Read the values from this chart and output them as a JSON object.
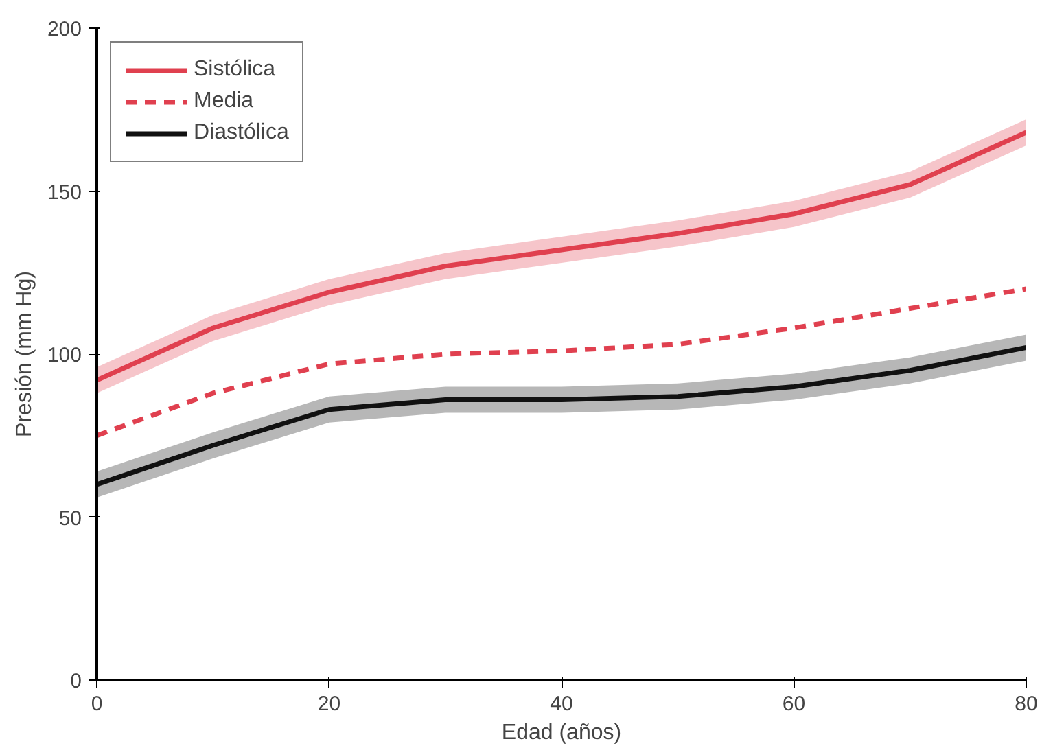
{
  "chart_data": {
    "type": "line",
    "xlabel": "Edad (años)",
    "ylabel": "Presión (mm Hg)",
    "x": [
      0,
      10,
      20,
      30,
      40,
      50,
      60,
      70,
      80
    ],
    "series": [
      {
        "name": "Sistólica",
        "color": "#e0404f",
        "line_style": "solid",
        "values": [
          92,
          108,
          119,
          127,
          132,
          137,
          143,
          152,
          168
        ],
        "lower": [
          88,
          104,
          115,
          123,
          128,
          133,
          139,
          148,
          164
        ],
        "upper": [
          96,
          112,
          123,
          131,
          136,
          141,
          147,
          156,
          172
        ]
      },
      {
        "name": "Media",
        "color": "#e0404f",
        "line_style": "dashed",
        "values": [
          75,
          88,
          97,
          100,
          101,
          103,
          108,
          114,
          120
        ]
      },
      {
        "name": "Diastólica",
        "color": "#111111",
        "line_style": "solid",
        "values": [
          60,
          72,
          83,
          86,
          86,
          87,
          90,
          95,
          102
        ],
        "lower": [
          56,
          68,
          79,
          82,
          82,
          83,
          86,
          91,
          98
        ],
        "upper": [
          64,
          76,
          87,
          90,
          90,
          91,
          94,
          99,
          106
        ]
      }
    ],
    "xlim": [
      0,
      80
    ],
    "ylim": [
      0,
      200
    ],
    "xticks": [
      0,
      20,
      40,
      60,
      80
    ],
    "yticks": [
      0,
      50,
      100,
      150,
      200
    ],
    "grid": false,
    "legend": "top left",
    "marker": "none"
  }
}
